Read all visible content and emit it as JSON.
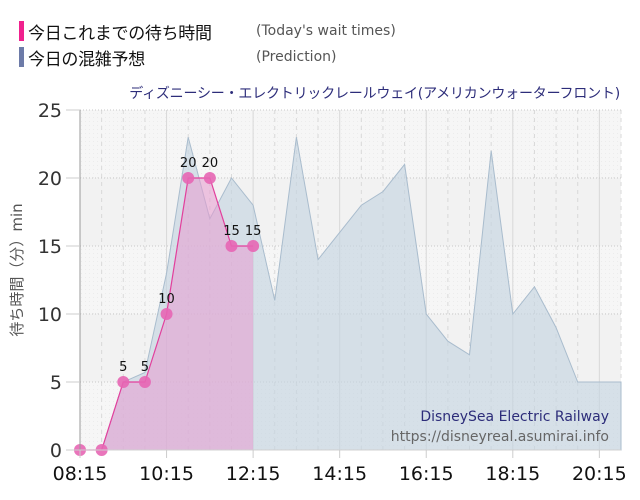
{
  "legend": {
    "items": [
      {
        "label": "今日これまでの待ち時間",
        "sub": "(Today's wait times)",
        "color": "#f0218e"
      },
      {
        "label": "今日の混雑予想",
        "sub": "(Prediction)",
        "color": "#6d7ba8"
      }
    ]
  },
  "chart_title": "ディズニーシー・エレクトリックレールウェイ(アメリカンウォーターフロント)",
  "watermark": {
    "name": "DisneySea Electric Railway",
    "url": "https://disneyreal.asumirai.info"
  },
  "chart_data": {
    "type": "area",
    "title": "ディズニーシー・エレクトリックレールウェイ(アメリカンウォーターフロント)",
    "xlabel": "",
    "ylabel": "待ち時間（分）min",
    "ylim": [
      0,
      25
    ],
    "yticks": [
      0,
      5,
      10,
      15,
      20,
      25
    ],
    "xticks": [
      "08:15",
      "10:15",
      "12:15",
      "14:15",
      "16:15",
      "18:15",
      "20:15"
    ],
    "xrange": [
      "08:15",
      "20:45"
    ],
    "grid": true,
    "legend_position": "top-left",
    "x": [
      "08:15",
      "08:45",
      "09:15",
      "09:45",
      "10:15",
      "10:45",
      "11:15",
      "11:45",
      "12:15",
      "12:45",
      "13:15",
      "13:45",
      "14:15",
      "14:45",
      "15:15",
      "15:45",
      "16:15",
      "16:45",
      "17:15",
      "17:45",
      "18:15",
      "18:45",
      "19:15",
      "19:45",
      "20:15",
      "20:45"
    ],
    "series": [
      {
        "name": "今日の混雑予想 (Prediction)",
        "color": "#c9d6e2",
        "values": [
          0,
          0,
          5,
          5.7,
          13,
          23,
          17,
          20,
          18,
          11,
          23,
          14,
          16,
          18,
          19,
          21,
          10,
          8,
          7,
          22,
          10,
          12,
          9,
          5,
          5,
          5
        ]
      },
      {
        "name": "今日これまでの待ち時間 (Today's wait times)",
        "color": "#e34fa8",
        "values": [
          0,
          0,
          5,
          5,
          10,
          20,
          20,
          15,
          15
        ],
        "data_labels": [
          "",
          "",
          "5",
          "5",
          "10",
          "20",
          "20",
          "15",
          "15"
        ]
      }
    ]
  }
}
